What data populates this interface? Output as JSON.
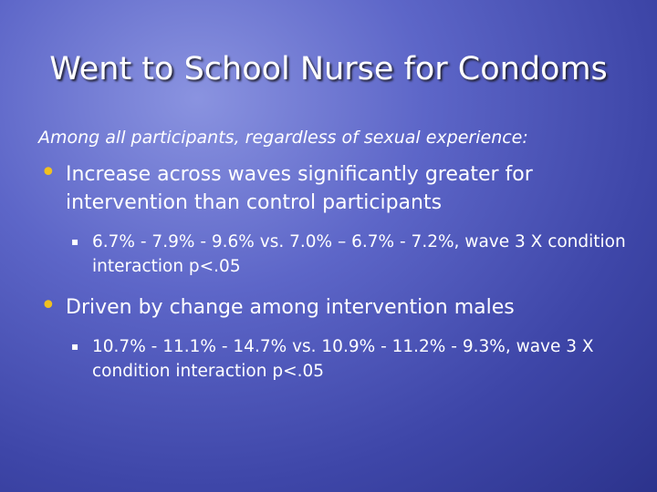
{
  "title": "Went to School Nurse for Condoms",
  "intro": "Among all participants, regardless of sexual experience:",
  "bullets": [
    {
      "text": "Increase across waves significantly greater for intervention than control participants",
      "sub": [
        "6.7% - 7.9% - 9.6%  vs.  7.0% – 6.7% - 7.2%, wave 3 X condition interaction p<.05"
      ]
    },
    {
      "text": "Driven by change among intervention males",
      "sub": [
        "10.7% - 11.1% - 14.7% vs. 10.9% - 11.2% - 9.3%, wave 3 X condition interaction p<.05"
      ]
    }
  ]
}
